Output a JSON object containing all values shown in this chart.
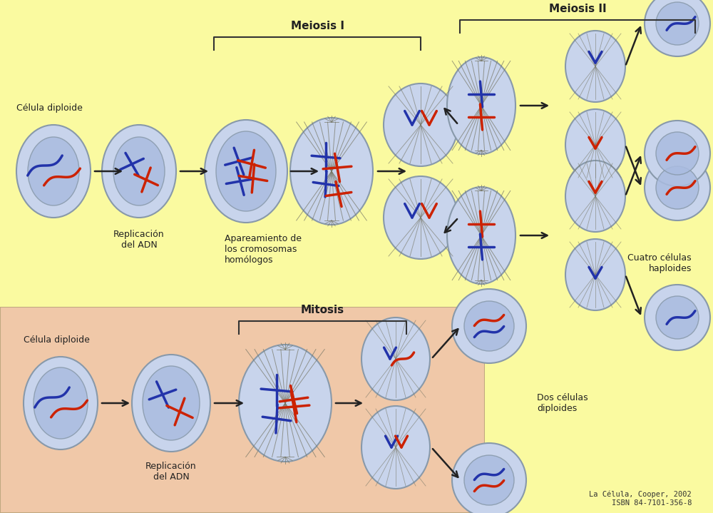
{
  "bg_top": "#FAFAA0",
  "bg_bottom": "#F0C8A8",
  "text_color": "#222222",
  "cell_fill": "#C8D4EC",
  "cell_edge": "#8899AA",
  "nucleus_fill": "#AABCE0",
  "chromosome_blue": "#2233AA",
  "chromosome_red": "#CC2200",
  "spindle_color": "#777766",
  "arrow_color": "#222222",
  "bracket_color": "#333333",
  "title_meiosis1": "Meiosis I",
  "title_meiosis2": "Meiosis II",
  "title_mitosis": "Mitosis",
  "label_celula_diploide": "Célula diploide",
  "label_replicacion": "Replicación\ndel ADN",
  "label_apareamiento": "Apareamiento de\nlos cromosomas\nhomólogos",
  "label_cuatro": "Cuatro células\nhaploides",
  "label_dos": "Dos células\ndiploides",
  "citation": "La Célula, Cooper, 2002\nISBN 84-7101-356-8"
}
